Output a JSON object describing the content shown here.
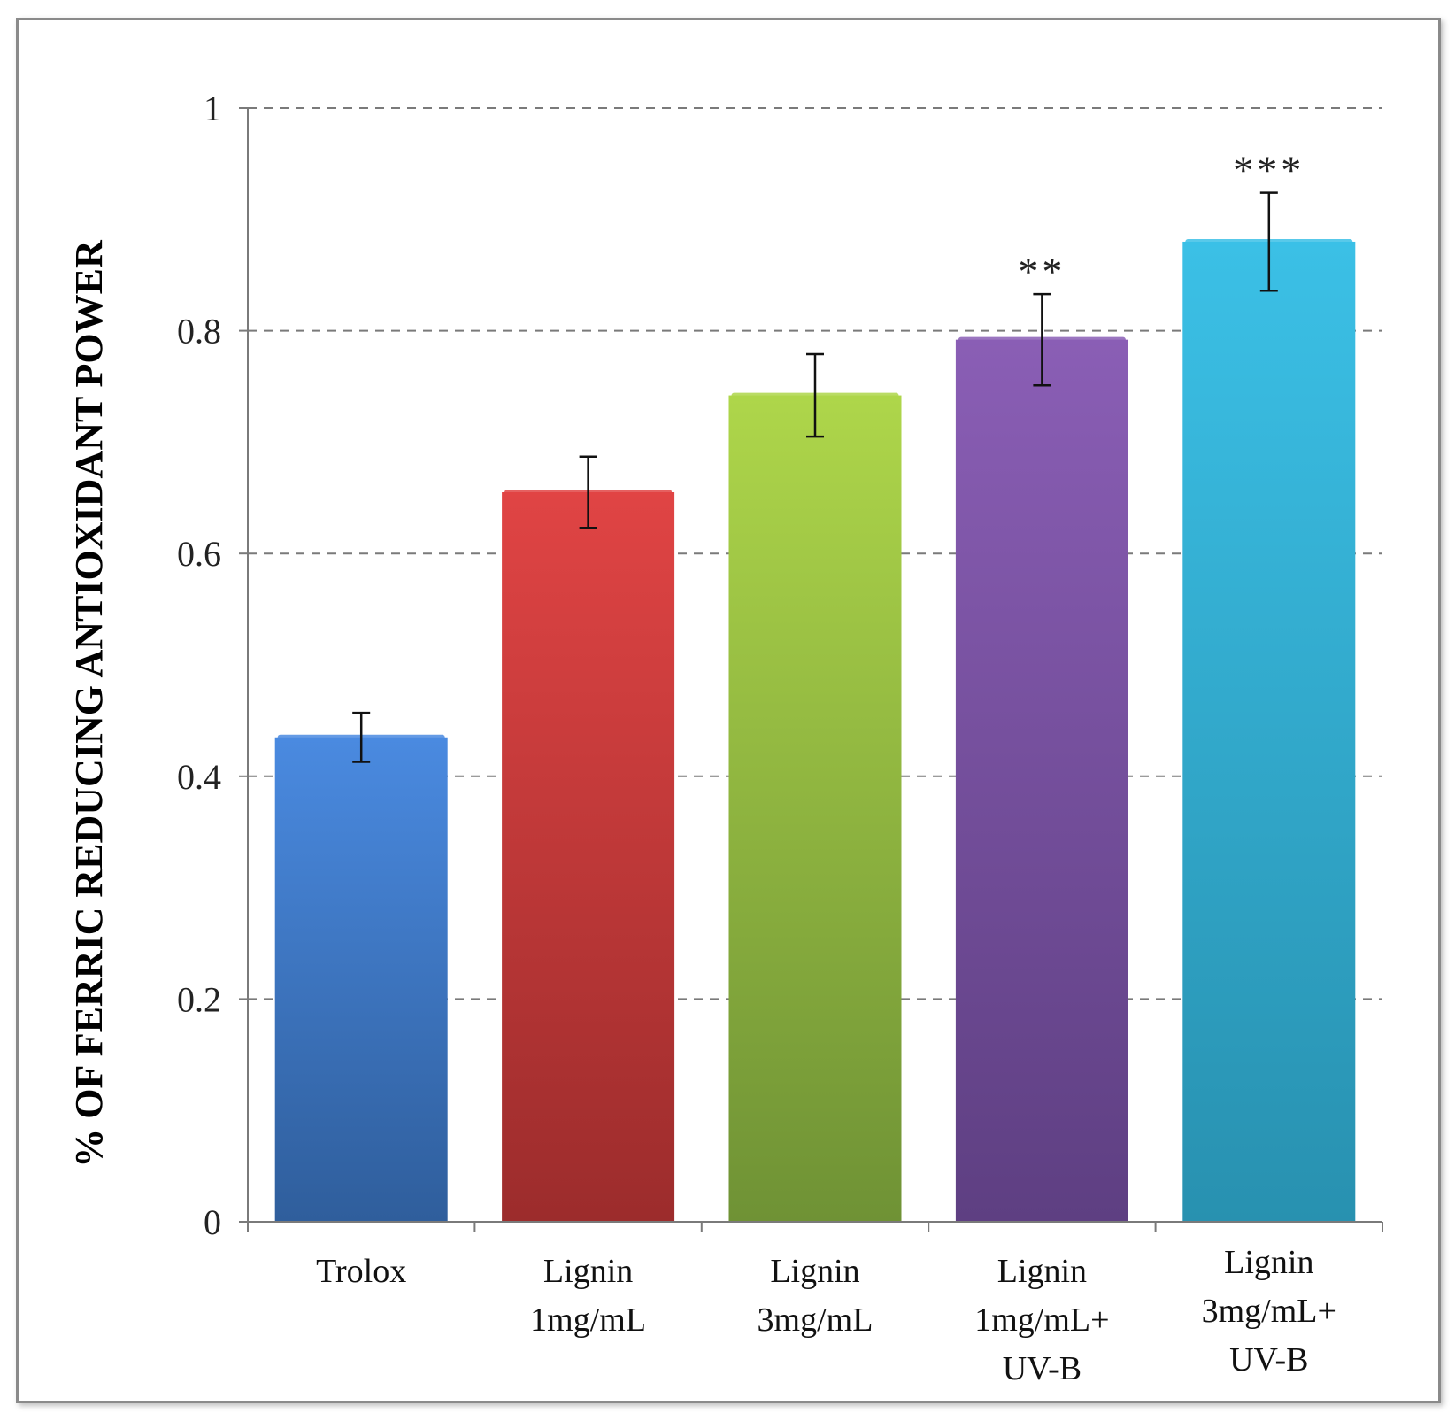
{
  "chart_data": {
    "type": "bar",
    "title": "",
    "xlabel": "",
    "ylabel": "% OF FERRIC REDUCING ANTIOXIDANT POWER",
    "ylim": [
      0,
      1
    ],
    "yticks": [
      0,
      0.2,
      0.4,
      0.6,
      0.8,
      1
    ],
    "ytick_labels": [
      "0",
      "0.2",
      "0.4",
      "0.6",
      "0.8",
      "1"
    ],
    "grid": "dashed horizontal",
    "categories": [
      [
        "Trolox"
      ],
      [
        "Lignin",
        "1mg/mL"
      ],
      [
        "Lignin",
        "3mg/mL"
      ],
      [
        "Lignin",
        "1mg/mL+",
        "UV-B"
      ],
      [
        "Lignin",
        "3mg/mL+",
        "UV-B"
      ]
    ],
    "values": [
      0.435,
      0.655,
      0.742,
      0.792,
      0.88
    ],
    "errors": [
      0.022,
      0.032,
      0.037,
      0.041,
      0.044
    ],
    "annotations": [
      "",
      "",
      "",
      "**",
      "***"
    ],
    "colors": [
      [
        "#4a8ae0",
        "#2f5e9c"
      ],
      [
        "#e04444",
        "#9c2c2c"
      ],
      [
        "#aed64a",
        "#6f9235"
      ],
      [
        "#8a5eb5",
        "#5e3f82"
      ],
      [
        "#3bc0e6",
        "#2891b0"
      ]
    ]
  }
}
